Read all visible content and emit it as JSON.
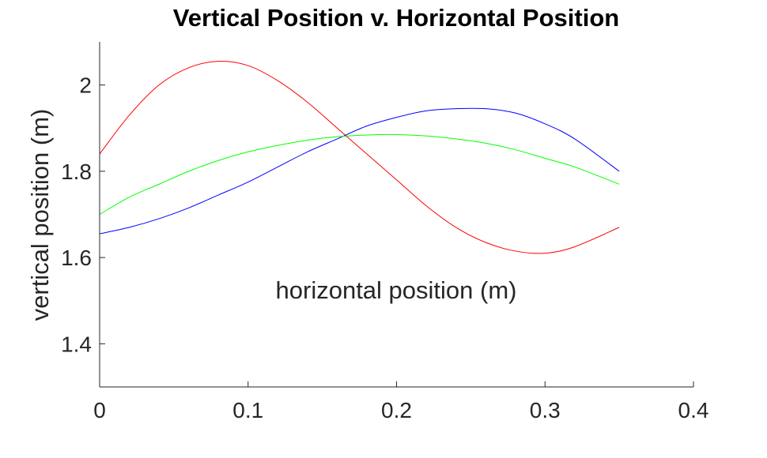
{
  "chart_data": {
    "type": "line",
    "title": "Vertical Position v. Horizontal Position",
    "xlabel": "horizontal position (m)",
    "ylabel": "vertical position (m)",
    "xlim": [
      0,
      0.4
    ],
    "ylim": [
      1.3,
      2.1
    ],
    "xticks": [
      0,
      0.1,
      0.2,
      0.3,
      0.4
    ],
    "xtick_labels": [
      "0",
      "0.1",
      "0.2",
      "0.3",
      "0.4"
    ],
    "yticks": [
      1.4,
      1.6,
      1.8,
      2.0
    ],
    "ytick_labels": [
      "1.4",
      "1.6",
      "1.8",
      "2"
    ],
    "grid": false,
    "box": "left-bottom",
    "series": [
      {
        "color": "#ff0000",
        "x": [
          0,
          0.02,
          0.04,
          0.06,
          0.08,
          0.1,
          0.12,
          0.14,
          0.16,
          0.18,
          0.2,
          0.22,
          0.24,
          0.26,
          0.28,
          0.3,
          0.32,
          0.35
        ],
        "y": [
          1.84,
          1.93,
          2.0,
          2.04,
          2.055,
          2.045,
          2.01,
          1.96,
          1.9,
          1.84,
          1.78,
          1.72,
          1.67,
          1.635,
          1.615,
          1.61,
          1.625,
          1.67
        ]
      },
      {
        "color": "#0000ff",
        "x": [
          0,
          0.02,
          0.04,
          0.06,
          0.08,
          0.1,
          0.12,
          0.14,
          0.16,
          0.18,
          0.2,
          0.22,
          0.24,
          0.26,
          0.28,
          0.3,
          0.32,
          0.35
        ],
        "y": [
          1.655,
          1.67,
          1.69,
          1.715,
          1.745,
          1.775,
          1.81,
          1.845,
          1.875,
          1.905,
          1.925,
          1.94,
          1.945,
          1.945,
          1.935,
          1.91,
          1.875,
          1.8
        ]
      },
      {
        "color": "#00ff00",
        "x": [
          0,
          0.02,
          0.04,
          0.06,
          0.08,
          0.1,
          0.12,
          0.14,
          0.16,
          0.18,
          0.2,
          0.22,
          0.24,
          0.26,
          0.28,
          0.3,
          0.32,
          0.35
        ],
        "y": [
          1.7,
          1.74,
          1.77,
          1.8,
          1.825,
          1.845,
          1.86,
          1.872,
          1.88,
          1.884,
          1.885,
          1.882,
          1.875,
          1.865,
          1.85,
          1.83,
          1.81,
          1.77
        ]
      }
    ]
  }
}
